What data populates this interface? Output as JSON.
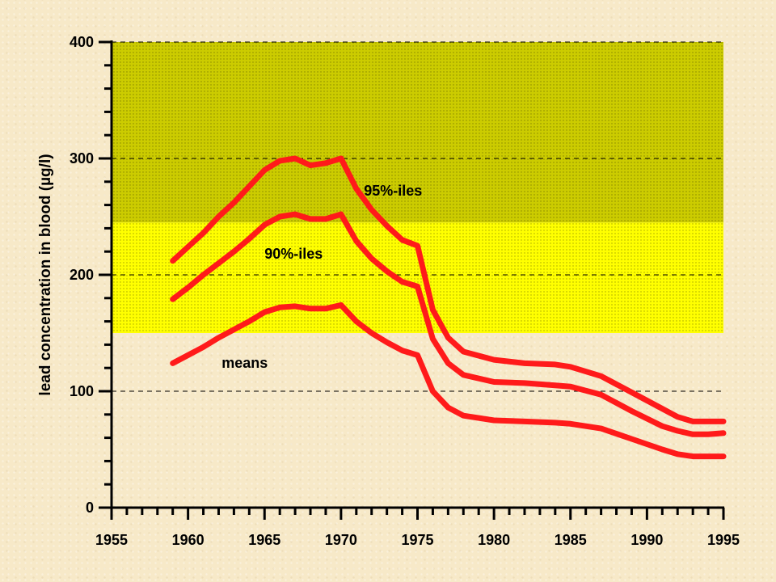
{
  "chart_data": {
    "type": "line",
    "title": "",
    "xlabel": "",
    "ylabel": "lead concentration in blood (µg/l)",
    "xlim": [
      1955,
      1995
    ],
    "ylim": [
      0,
      400
    ],
    "x_ticks": [
      "1955",
      "1960",
      "1965",
      "1970",
      "1975",
      "1980",
      "1985",
      "1990",
      "1995"
    ],
    "y_ticks": [
      "0",
      "100",
      "200",
      "300",
      "400"
    ],
    "grid": "horizontal dashed lines at 100, 200, 300, 400",
    "line_color": "#ff1a1a",
    "bands": [
      {
        "from": 150,
        "to": 245,
        "color": "#ffff00"
      },
      {
        "from": 245,
        "to": 400,
        "color": "#cccc00"
      }
    ],
    "series": [
      {
        "name": "95%-iles",
        "x": [
          1959,
          1960,
          1961,
          1962,
          1963,
          1964,
          1965,
          1966,
          1967,
          1968,
          1969,
          1970,
          1971,
          1972,
          1973,
          1974,
          1975,
          1976,
          1977,
          1978,
          1980,
          1982,
          1984,
          1985,
          1987,
          1989,
          1991,
          1992,
          1993,
          1994,
          1995
        ],
        "y": [
          212,
          224,
          236,
          250,
          262,
          276,
          290,
          298,
          300,
          294,
          296,
          300,
          274,
          256,
          242,
          230,
          225,
          170,
          146,
          134,
          127,
          124,
          123,
          121,
          113,
          99,
          85,
          78,
          74,
          74,
          74
        ]
      },
      {
        "name": "90%-iles",
        "x": [
          1959,
          1960,
          1961,
          1962,
          1963,
          1964,
          1965,
          1966,
          1967,
          1968,
          1969,
          1970,
          1971,
          1972,
          1973,
          1974,
          1975,
          1976,
          1977,
          1978,
          1980,
          1982,
          1984,
          1985,
          1987,
          1989,
          1991,
          1992,
          1993,
          1994,
          1995
        ],
        "y": [
          179,
          189,
          200,
          210,
          220,
          231,
          243,
          250,
          252,
          248,
          248,
          252,
          229,
          214,
          203,
          194,
          190,
          145,
          124,
          114,
          108,
          107,
          105,
          104,
          97,
          83,
          70,
          66,
          63,
          63,
          64
        ]
      },
      {
        "name": "means",
        "x": [
          1959,
          1960,
          1961,
          1962,
          1963,
          1964,
          1965,
          1966,
          1967,
          1968,
          1969,
          1970,
          1971,
          1972,
          1973,
          1974,
          1975,
          1976,
          1977,
          1978,
          1980,
          1982,
          1984,
          1985,
          1987,
          1989,
          1991,
          1992,
          1993,
          1994,
          1995
        ],
        "y": [
          124,
          131,
          138,
          146,
          153,
          160,
          168,
          172,
          173,
          171,
          171,
          174,
          160,
          150,
          142,
          135,
          131,
          100,
          86,
          79,
          75,
          74,
          73,
          72,
          68,
          59,
          50,
          46,
          44,
          44,
          44
        ]
      }
    ]
  }
}
